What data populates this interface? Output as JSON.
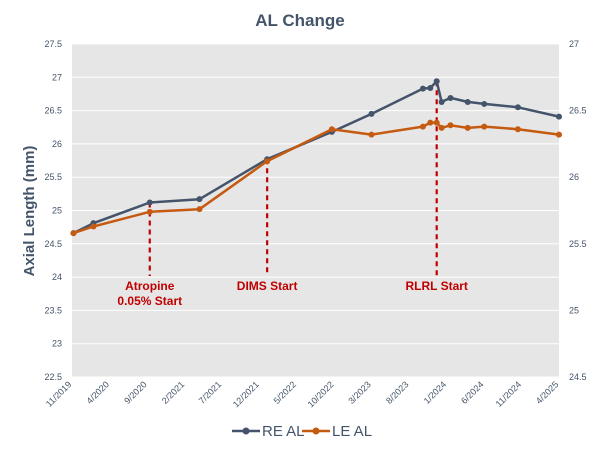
{
  "chart_data": {
    "type": "line",
    "title": "AL Change",
    "ylabel": "Axial Length (mm)",
    "ylim": [
      22.5,
      27.5
    ],
    "y2lim": [
      24.5,
      27
    ],
    "yticks": [
      "22.5",
      "23",
      "23.5",
      "24",
      "24.5",
      "25",
      "25.5",
      "26",
      "26.5",
      "27",
      "27.5"
    ],
    "y2ticks": [
      "24.5",
      "25",
      "25.5",
      "26",
      "26.5",
      "27"
    ],
    "xlim": [
      "2019-11-01",
      "2025-04-02"
    ],
    "xticks": [
      {
        "date": "2019-11-01",
        "label": "11/2019"
      },
      {
        "date": "2020-04-02",
        "label": "4/2020"
      },
      {
        "date": "2020-09-02",
        "label": "9/2020"
      },
      {
        "date": "2021-02-02",
        "label": "2/2021"
      },
      {
        "date": "2021-07-02",
        "label": "7/2021"
      },
      {
        "date": "2021-12-02",
        "label": "12/2021"
      },
      {
        "date": "2022-05-02",
        "label": "5/2022"
      },
      {
        "date": "2022-10-02",
        "label": "10/2022"
      },
      {
        "date": "2023-03-02",
        "label": "3/2023"
      },
      {
        "date": "2023-08-02",
        "label": "8/2023"
      },
      {
        "date": "2024-01-02",
        "label": "1/2024"
      },
      {
        "date": "2024-06-02",
        "label": "6/2024"
      },
      {
        "date": "2024-11-02",
        "label": "11/2024"
      },
      {
        "date": "2025-04-02",
        "label": "4/2025"
      }
    ],
    "grid": true,
    "legend_position": "bottom",
    "series": [
      {
        "name": "RE AL",
        "color": "#44546a",
        "points": [
          [
            "2019-11-07",
            24.66
          ],
          [
            "2020-01-27",
            24.81
          ],
          [
            "2020-09-12",
            25.12
          ],
          [
            "2021-04-02",
            25.17
          ],
          [
            "2022-01-02",
            25.77
          ],
          [
            "2022-09-22",
            26.18
          ],
          [
            "2023-03-02",
            26.45
          ],
          [
            "2023-09-27",
            26.83
          ],
          [
            "2023-10-27",
            26.84
          ],
          [
            "2023-11-22",
            26.94
          ],
          [
            "2023-12-12",
            26.63
          ],
          [
            "2024-01-17",
            26.69
          ],
          [
            "2024-03-27",
            26.63
          ],
          [
            "2024-06-02",
            26.6
          ],
          [
            "2024-10-17",
            26.55
          ],
          [
            "2025-04-02",
            26.41
          ]
        ]
      },
      {
        "name": "LE AL",
        "color": "#c55a11",
        "points": [
          [
            "2019-11-07",
            25.58
          ],
          [
            "2020-01-27",
            25.63
          ],
          [
            "2020-09-12",
            25.74
          ],
          [
            "2021-04-02",
            25.76
          ],
          [
            "2022-01-02",
            26.12
          ],
          [
            "2022-09-22",
            26.36
          ],
          [
            "2023-03-02",
            26.32
          ],
          [
            "2023-09-27",
            26.38
          ],
          [
            "2023-10-27",
            26.41
          ],
          [
            "2023-11-22",
            26.41
          ],
          [
            "2023-12-12",
            26.37
          ],
          [
            "2024-01-17",
            26.39
          ],
          [
            "2024-03-27",
            26.37
          ],
          [
            "2024-06-02",
            26.38
          ],
          [
            "2024-10-17",
            26.36
          ],
          [
            "2025-04-02",
            26.32
          ]
        ]
      }
    ],
    "annotations": [
      {
        "date": "2020-09-12",
        "lines": [
          "Atropine",
          "0.05% Start"
        ],
        "color": "#c00000"
      },
      {
        "date": "2022-01-02",
        "lines": [
          "DIMS Start"
        ],
        "color": "#c00000"
      },
      {
        "date": "2023-11-22",
        "lines": [
          "RLRL Start"
        ],
        "color": "#c00000"
      }
    ]
  }
}
